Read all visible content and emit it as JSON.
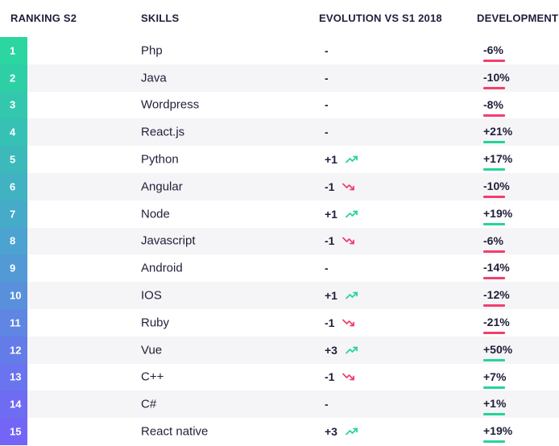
{
  "header": {
    "rank": "RANKING S2",
    "skill": "SKILLS",
    "evolution": "EVOLUTION VS S1 2018",
    "development": "DEVELOPMENT"
  },
  "colors": {
    "up": "#27d39a",
    "down": "#f0406e",
    "text": "#1f1f3a",
    "row_alt": "#f5f5f7",
    "rank_gradient": [
      "#2bd6a0",
      "#2fcfa6",
      "#33c8ad",
      "#37c1b4",
      "#3cbabb",
      "#40b2c2",
      "#46aac9",
      "#4ca2d0",
      "#529ad6",
      "#5890dc",
      "#5e86e2",
      "#647ce8",
      "#6a74ee",
      "#6e6cf2",
      "#7366f6"
    ]
  },
  "rows": [
    {
      "rank": "1",
      "skill": "Php",
      "evolution": "-",
      "trend": "none",
      "development": "-6%",
      "dev_dir": "down"
    },
    {
      "rank": "2",
      "skill": "Java",
      "evolution": "-",
      "trend": "none",
      "development": "-10%",
      "dev_dir": "down"
    },
    {
      "rank": "3",
      "skill": "Wordpress",
      "evolution": "-",
      "trend": "none",
      "development": "-8%",
      "dev_dir": "down"
    },
    {
      "rank": "4",
      "skill": "React.js",
      "evolution": "-",
      "trend": "none",
      "development": "+21%",
      "dev_dir": "up"
    },
    {
      "rank": "5",
      "skill": "Python",
      "evolution": "+1",
      "trend": "up",
      "development": "+17%",
      "dev_dir": "up"
    },
    {
      "rank": "6",
      "skill": "Angular",
      "evolution": "-1",
      "trend": "down",
      "development": "-10%",
      "dev_dir": "down"
    },
    {
      "rank": "7",
      "skill": "Node",
      "evolution": "+1",
      "trend": "up",
      "development": "+19%",
      "dev_dir": "up"
    },
    {
      "rank": "8",
      "skill": "Javascript",
      "evolution": "-1",
      "trend": "down",
      "development": "-6%",
      "dev_dir": "down"
    },
    {
      "rank": "9",
      "skill": "Android",
      "evolution": "-",
      "trend": "none",
      "development": "-14%",
      "dev_dir": "down"
    },
    {
      "rank": "10",
      "skill": "IOS",
      "evolution": "+1",
      "trend": "up",
      "development": "-12%",
      "dev_dir": "down"
    },
    {
      "rank": "11",
      "skill": "Ruby",
      "evolution": "-1",
      "trend": "down",
      "development": "-21%",
      "dev_dir": "down"
    },
    {
      "rank": "12",
      "skill": "Vue",
      "evolution": "+3",
      "trend": "up",
      "development": "+50%",
      "dev_dir": "up"
    },
    {
      "rank": "13",
      "skill": "C++",
      "evolution": "-1",
      "trend": "down",
      "development": "+7%",
      "dev_dir": "up"
    },
    {
      "rank": "14",
      "skill": "C#",
      "evolution": "-",
      "trend": "none",
      "development": "+1%",
      "dev_dir": "up"
    },
    {
      "rank": "15",
      "skill": "React native",
      "evolution": "+3",
      "trend": "up",
      "development": "+19%",
      "dev_dir": "up"
    }
  ]
}
